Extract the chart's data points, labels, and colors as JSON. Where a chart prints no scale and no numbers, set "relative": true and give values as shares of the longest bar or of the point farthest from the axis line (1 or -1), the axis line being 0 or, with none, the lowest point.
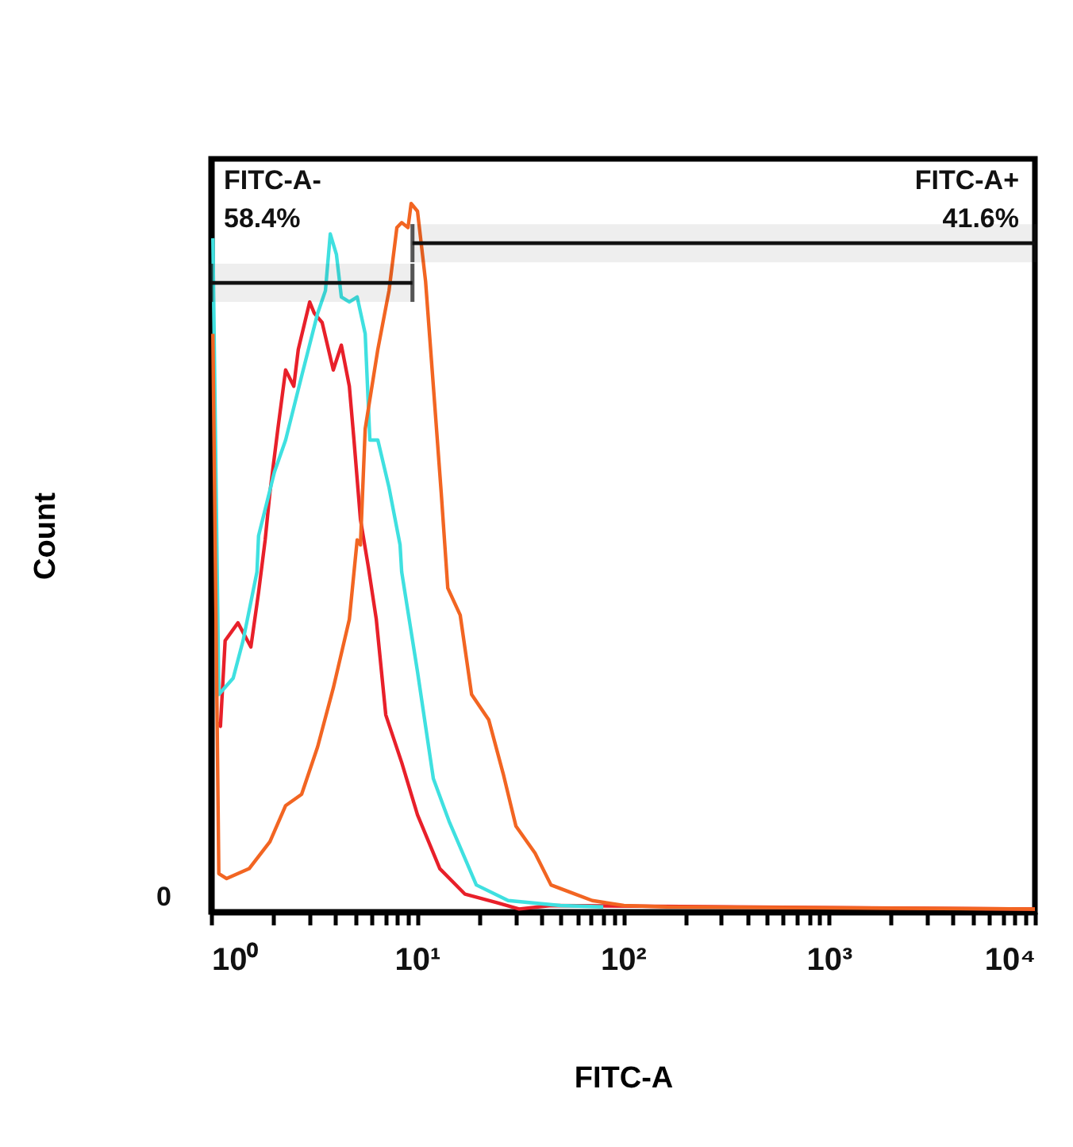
{
  "chart_data": {
    "type": "line",
    "relative": true,
    "xlabel": "FITC-A",
    "ylabel": "Count",
    "log": "x",
    "grid": false,
    "legend": false,
    "marker": "none",
    "line_style": "solid",
    "xlim": [
      1,
      10000
    ],
    "xticks": [
      {
        "value": 1,
        "label": "10⁰"
      },
      {
        "value": 2,
        "label": null
      },
      {
        "value": 3,
        "label": null
      },
      {
        "value": 4,
        "label": null
      },
      {
        "value": 5,
        "label": null
      },
      {
        "value": 6,
        "label": null
      },
      {
        "value": 7,
        "label": null
      },
      {
        "value": 8,
        "label": null
      },
      {
        "value": 9,
        "label": null
      },
      {
        "value": 10,
        "label": "10¹"
      },
      {
        "value": 20,
        "label": null
      },
      {
        "value": 30,
        "label": null
      },
      {
        "value": 40,
        "label": null
      },
      {
        "value": 50,
        "label": null
      },
      {
        "value": 60,
        "label": null
      },
      {
        "value": 70,
        "label": null
      },
      {
        "value": 80,
        "label": null
      },
      {
        "value": 90,
        "label": null
      },
      {
        "value": 100,
        "label": "10²"
      },
      {
        "value": 200,
        "label": null
      },
      {
        "value": 300,
        "label": null
      },
      {
        "value": 400,
        "label": null
      },
      {
        "value": 500,
        "label": null
      },
      {
        "value": 600,
        "label": null
      },
      {
        "value": 700,
        "label": null
      },
      {
        "value": 800,
        "label": null
      },
      {
        "value": 900,
        "label": null
      },
      {
        "value": 1000,
        "label": "10³"
      },
      {
        "value": 2000,
        "label": null
      },
      {
        "value": 3000,
        "label": null
      },
      {
        "value": 4000,
        "label": null
      },
      {
        "value": 5000,
        "label": null
      },
      {
        "value": 6000,
        "label": null
      },
      {
        "value": 7000,
        "label": null
      },
      {
        "value": 8000,
        "label": null
      },
      {
        "value": 9000,
        "label": null
      },
      {
        "value": 10000,
        "label": "10⁴"
      }
    ],
    "bands": [
      {
        "axis": "x",
        "from": 1,
        "to": 9.5,
        "label": "FITC-A-\n58.4%"
      },
      {
        "axis": "x",
        "from": 9.5,
        "to": 10000,
        "label": "FITC-A+\n41.6%"
      }
    ],
    "annotations": [
      "0"
    ],
    "series": [
      {
        "color": "#e8202a",
        "x": [
          1.07,
          1.11,
          1.17,
          1.35,
          1.56,
          1.7,
          1.83,
          1.93,
          2.11,
          2.3,
          2.52,
          2.65,
          3.01,
          3.17,
          3.46,
          3.92,
          4.29,
          4.69,
          4.94,
          5.31,
          5.8,
          6.34,
          7.05,
          8.42,
          10.05,
          12.9,
          17.1,
          24.4,
          31.3,
          44.7,
          10000
        ],
        "values": [
          0.267,
          0.262,
          0.383,
          0.408,
          0.374,
          0.451,
          0.525,
          0.592,
          0.682,
          0.765,
          0.742,
          0.794,
          0.861,
          0.845,
          0.832,
          0.765,
          0.8,
          0.742,
          0.666,
          0.554,
          0.487,
          0.413,
          0.278,
          0.211,
          0.137,
          0.061,
          0.025,
          0.013,
          0.004,
          0.009,
          0.004
        ]
      },
      {
        "color": "#3fe0e0",
        "x": [
          1.02,
          1.09,
          1.28,
          1.43,
          1.67,
          1.7,
          2.03,
          2.3,
          2.75,
          3.29,
          3.59,
          3.79,
          4.06,
          4.29,
          4.69,
          5.12,
          5.6,
          5.9,
          6.45,
          7.31,
          8.27,
          8.42,
          10.05,
          12.0,
          14.3,
          19.4,
          27.7,
          49.7,
          80.2
        ],
        "values": [
          0.951,
          0.307,
          0.33,
          0.383,
          0.48,
          0.531,
          0.621,
          0.666,
          0.756,
          0.845,
          0.877,
          0.957,
          0.928,
          0.868,
          0.861,
          0.868,
          0.816,
          0.666,
          0.666,
          0.599,
          0.518,
          0.48,
          0.339,
          0.188,
          0.128,
          0.038,
          0.016,
          0.009,
          0.007
        ]
      },
      {
        "color": "#f26522",
        "x": [
          1.02,
          1.09,
          1.19,
          1.53,
          1.93,
          2.3,
          2.75,
          3.29,
          3.92,
          4.69,
          5.12,
          5.31,
          5.6,
          6.45,
          7.31,
          7.98,
          8.42,
          9.04,
          9.36,
          10.05,
          11.0,
          12.0,
          13.1,
          14.1,
          16.2,
          18.4,
          22.3,
          26.2,
          30.2,
          37.4,
          44.7,
          56.2,
          70.9,
          101,
          163,
          10000
        ],
        "values": [
          0.816,
          0.054,
          0.047,
          0.061,
          0.099,
          0.15,
          0.166,
          0.233,
          0.316,
          0.413,
          0.525,
          0.518,
          0.682,
          0.794,
          0.877,
          0.966,
          0.973,
          0.966,
          1.0,
          0.989,
          0.89,
          0.742,
          0.592,
          0.457,
          0.419,
          0.307,
          0.271,
          0.195,
          0.121,
          0.083,
          0.038,
          0.027,
          0.016,
          0.009,
          0.007,
          0.004
        ]
      }
    ]
  }
}
